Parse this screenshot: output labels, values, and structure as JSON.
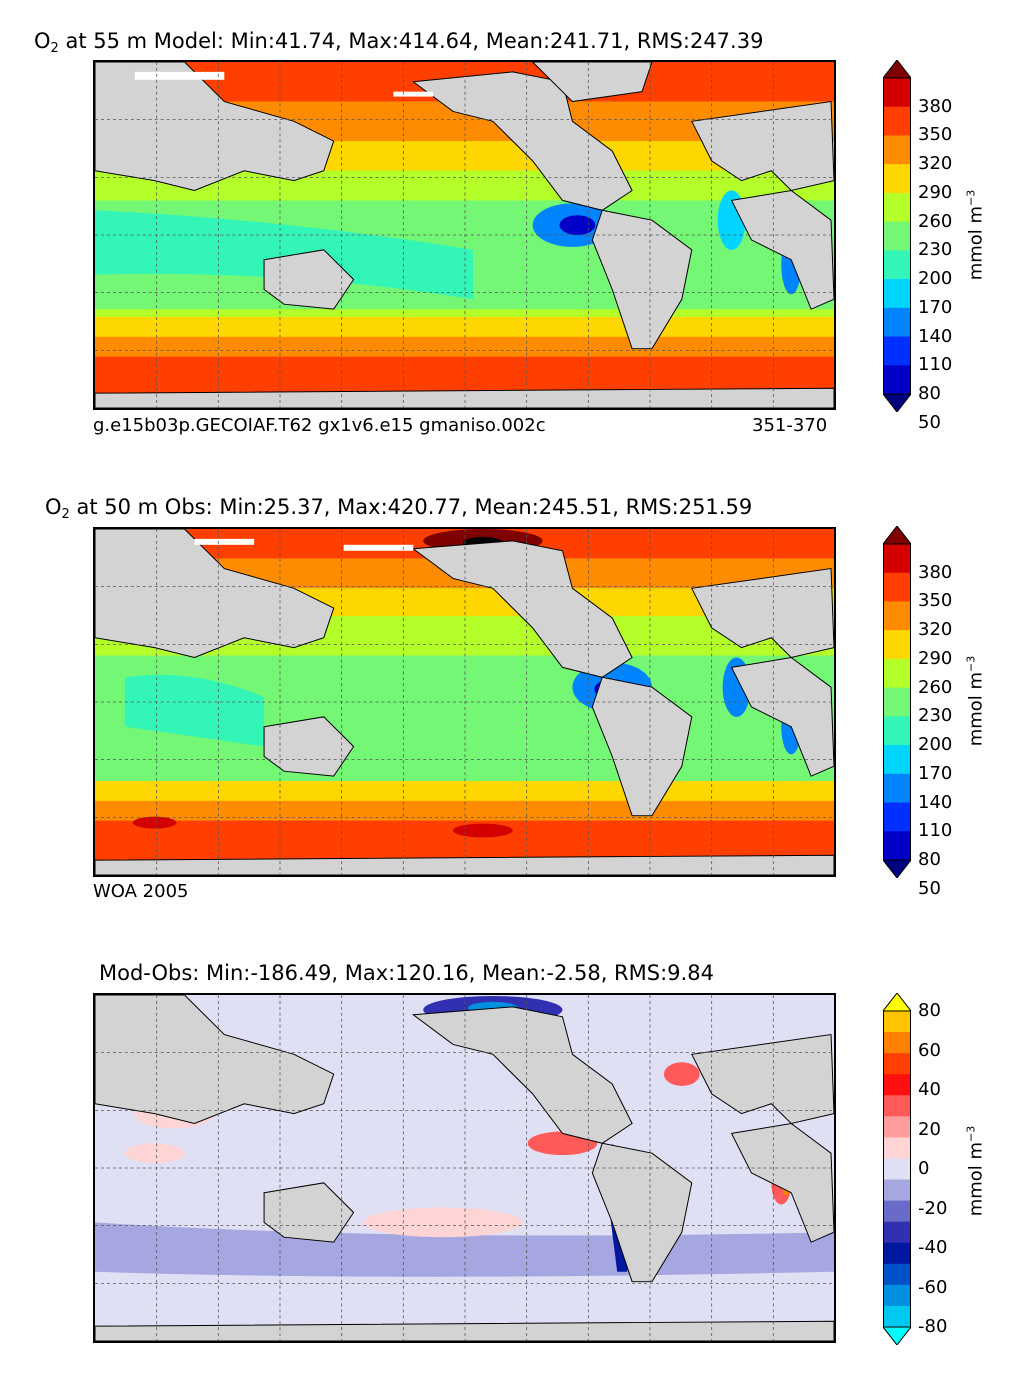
{
  "panels": [
    {
      "id": "model",
      "title_species": "O",
      "title_sub": "2",
      "title_rest": " at 55 m Model: Min:41.74, Max:414.64, Mean:241.71, RMS:247.39",
      "caption_left": "g.e15b03p.GECOIAF.T62 gx1v6.e15 gmaniso.002c",
      "caption_right": "351-370",
      "colorbar": {
        "ticks": [
          "380",
          "350",
          "320",
          "290",
          "260",
          "230",
          "200",
          "170",
          "140",
          "110",
          "80",
          "50"
        ],
        "colors": [
          "#7f0000",
          "#d40000",
          "#ff3f00",
          "#ff8c00",
          "#ffd700",
          "#b4ff2a",
          "#74f774",
          "#34f5b8",
          "#00d4ff",
          "#0084ff",
          "#0030ff",
          "#0000c8",
          "#00007f"
        ],
        "unit": "mmol m",
        "unit_exp": "−3"
      }
    },
    {
      "id": "obs",
      "title_species": "O",
      "title_sub": "2",
      "title_rest": " at 50 m Obs: Min:25.37, Max:420.77, Mean:245.51, RMS:251.59",
      "caption_left": "WOA 2005",
      "caption_right": "",
      "colorbar": {
        "ticks": [
          "380",
          "350",
          "320",
          "290",
          "260",
          "230",
          "200",
          "170",
          "140",
          "110",
          "80",
          "50"
        ],
        "colors": [
          "#7f0000",
          "#d40000",
          "#ff3f00",
          "#ff8c00",
          "#ffd700",
          "#b4ff2a",
          "#74f774",
          "#34f5b8",
          "#00d4ff",
          "#0084ff",
          "#0030ff",
          "#0000c8",
          "#00007f"
        ],
        "unit": "mmol m",
        "unit_exp": "−3"
      }
    },
    {
      "id": "diff",
      "title_species": "",
      "title_sub": "",
      "title_rest": "Mod-Obs: Min:-186.49, Max:120.16, Mean:-2.58, RMS:9.84",
      "caption_left": "",
      "caption_right": "",
      "colorbar": {
        "ticks": [
          "80",
          "60",
          "40",
          "20",
          "0",
          "-20",
          "-40",
          "-60",
          "-80"
        ],
        "colors": [
          "#ffff00",
          "#ffc400",
          "#ff8000",
          "#ff4000",
          "#ff1010",
          "#ff5a5a",
          "#ff9c9c",
          "#ffd4d4",
          "#e0e0f4",
          "#a6a6e0",
          "#6a6ac8",
          "#3030b0",
          "#0018a0",
          "#0050c8",
          "#0090e0",
          "#00c8f0",
          "#00ffff"
        ],
        "unit": "mmol m",
        "unit_exp": "−3"
      }
    }
  ],
  "colors": {
    "land": "#d3d3d3",
    "frame": "#000000",
    "grid": "#555555"
  }
}
